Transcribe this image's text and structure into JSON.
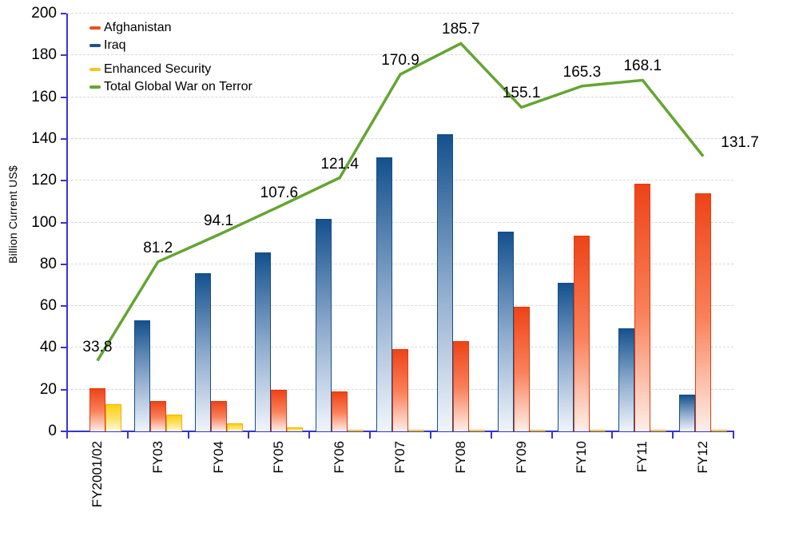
{
  "chart_data": {
    "type": "bar",
    "subtype": "grouped-bars-with-line-overlay",
    "title": "",
    "xlabel": "",
    "ylabel": "Billion Current US$",
    "ylim": [
      0,
      200
    ],
    "ytick_step": 20,
    "grid": "horizontal dashed, on",
    "legend_position": "top-left inside plot",
    "axis_color": "#3535D0",
    "gridline_color": "#D9D9D9",
    "categories": [
      "FY2001/02",
      "FY03",
      "FY04",
      "FY05",
      "FY06",
      "FY07",
      "FY08",
      "FY09",
      "FY10",
      "FY11",
      "FY12"
    ],
    "bar_series": [
      {
        "name": "Iraq",
        "color_top": "#14518E",
        "color_mid": "#8FACCE",
        "color_bottom": "#F1F5FB",
        "border": "#174E86",
        "values": [
          0,
          53.0,
          75.9,
          85.5,
          101.6,
          131.2,
          142.1,
          95.5,
          71.3,
          49.3,
          17.7
        ]
      },
      {
        "name": "Afghanistan",
        "color_top": "#EE4318",
        "color_mid": "#F9815A",
        "color_bottom": "#FDEFE9",
        "border": "#E23C10",
        "values": [
          20.8,
          14.7,
          14.5,
          20.0,
          19.0,
          39.2,
          43.4,
          59.5,
          93.8,
          118.6,
          113.9
        ]
      },
      {
        "name": "Enhanced Security",
        "color_top": "#FFD012",
        "color_mid": "#FFE26A",
        "color_bottom": "#FFFBE2",
        "border": "#E9B400",
        "values": [
          13.0,
          8.0,
          3.7,
          2.1,
          0.8,
          0.5,
          0.2,
          0.1,
          0.1,
          0.1,
          0.1
        ]
      }
    ],
    "line_series": {
      "name": "Total Global War on Terror",
      "color": "#64A532",
      "values": [
        33.8,
        81.2,
        94.1,
        107.6,
        121.4,
        170.9,
        185.7,
        155.1,
        165.3,
        168.1,
        131.7
      ],
      "point_labels": [
        "33.8",
        "81.2",
        "94.1",
        "107.6",
        "121.4",
        "170.9",
        "185.7",
        "155.1",
        "165.3",
        "168.1",
        "131.7"
      ]
    },
    "y_tick_labels": [
      "0",
      "20",
      "40",
      "60",
      "80",
      "100",
      "120",
      "140",
      "160",
      "180",
      "200"
    ],
    "legend": [
      {
        "label": "Afghanistan",
        "color": "#ED501E"
      },
      {
        "label": "Iraq",
        "color": "#1A538F"
      },
      {
        "label": "Enhanced Security",
        "color": "#F2C71D"
      },
      {
        "label": "Total Global War on Terror",
        "color": "#64A532"
      }
    ]
  }
}
